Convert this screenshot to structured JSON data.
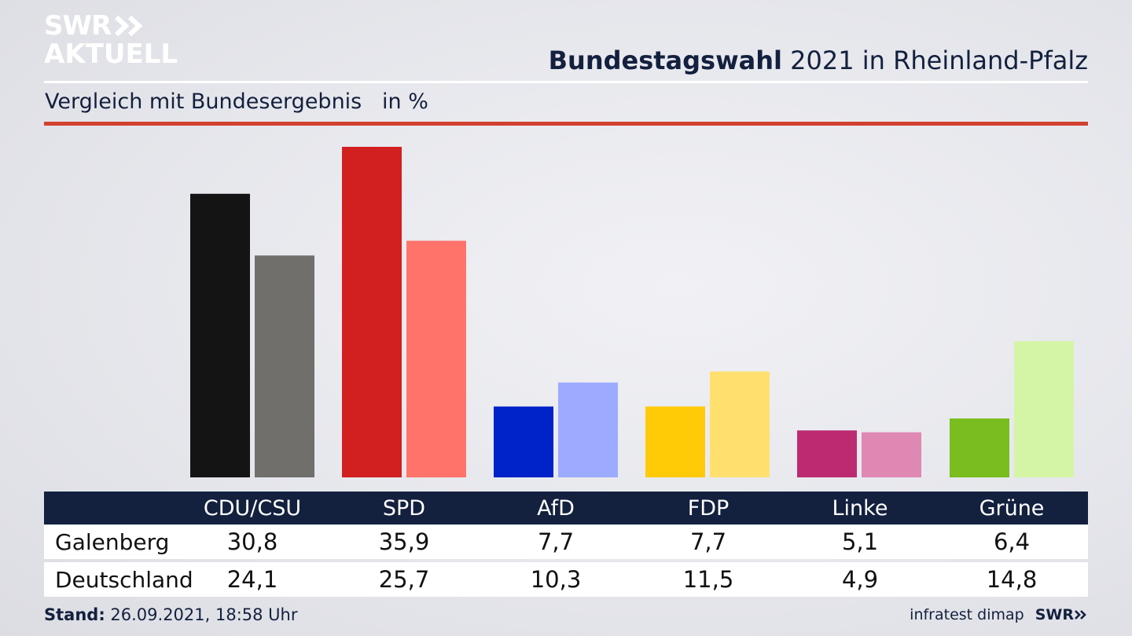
{
  "logo": {
    "line1": "SWR",
    "line2": "AKTUELL"
  },
  "title": {
    "bold": "Bundestagswahl",
    "rest": " 2021 in Rheinland-Pfalz"
  },
  "subtitle": "Vergleich mit Bundesergebnis   in %",
  "colors": {
    "navy": "#13203e",
    "accent_red": "#d2402f",
    "series1": [
      "#141414",
      "#d21f1f",
      "#0022c9",
      "#ffcb06",
      "#bc2b71",
      "#79bd1e"
    ],
    "series2": [
      "#706f6c",
      "#ff736b",
      "#9cabff",
      "#ffe06f",
      "#e088b4",
      "#d4f5a6"
    ]
  },
  "chart_data": {
    "type": "bar",
    "categories": [
      "CDU/CSU",
      "SPD",
      "AfD",
      "FDP",
      "Linke",
      "Grüne"
    ],
    "series": [
      {
        "name": "Galenberg",
        "values": [
          30.8,
          35.9,
          7.7,
          7.7,
          5.1,
          6.4
        ]
      },
      {
        "name": "Deutschland",
        "values": [
          24.1,
          25.7,
          10.3,
          11.5,
          4.9,
          14.8
        ]
      }
    ],
    "ylim": [
      0,
      36
    ]
  },
  "table": {
    "headers": [
      "CDU/CSU",
      "SPD",
      "AfD",
      "FDP",
      "Linke",
      "Grüne"
    ],
    "rows": [
      {
        "label": "Galenberg",
        "values": [
          "30,8",
          "35,9",
          "7,7",
          "7,7",
          "5,1",
          "6,4"
        ]
      },
      {
        "label": "Deutschland",
        "values": [
          "24,1",
          "25,7",
          "10,3",
          "11,5",
          "4,9",
          "14,8"
        ]
      }
    ]
  },
  "footer": {
    "stand_label": "Stand:",
    "stand_value": " 26.09.2021, 18:58 Uhr",
    "source": "infratest dimap",
    "brand": "SWR"
  }
}
